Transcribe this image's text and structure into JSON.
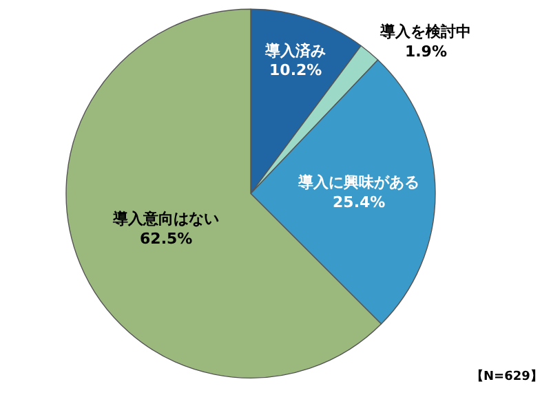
{
  "chart_data": {
    "type": "pie",
    "categories": [
      "導入済み",
      "導入を検討中",
      "導入に興味がある",
      "導入意向はない"
    ],
    "values": [
      10.2,
      1.9,
      25.4,
      62.5
    ],
    "value_labels": [
      "10.2%",
      "1.9%",
      "25.4%",
      "62.5%"
    ],
    "colors": [
      "#2166a4",
      "#9cd9c7",
      "#3a9ac9",
      "#9bb87d"
    ],
    "annotations": [
      "【N=629】"
    ]
  }
}
